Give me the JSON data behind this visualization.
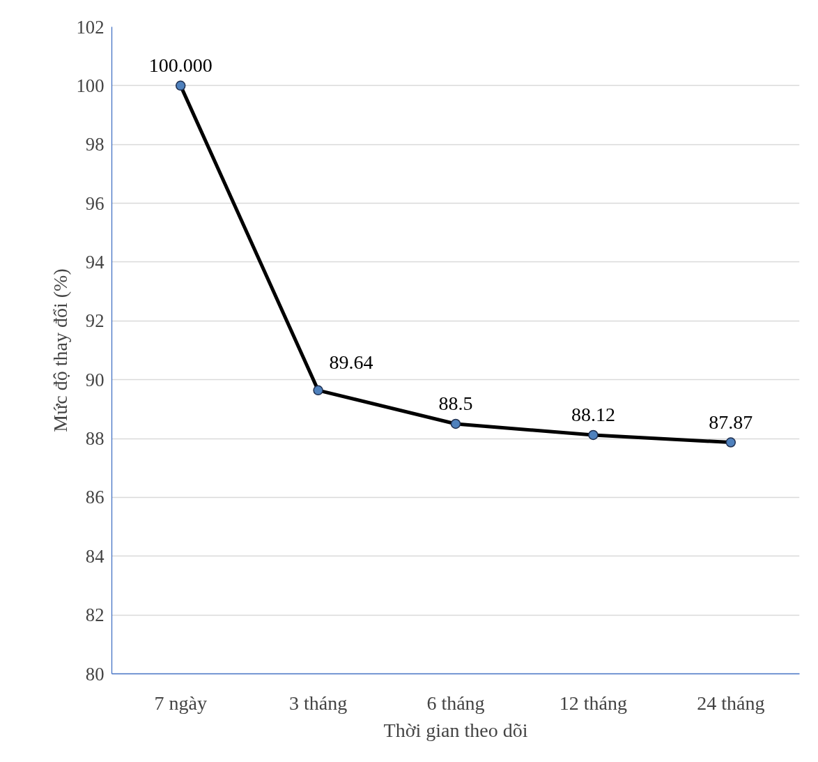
{
  "chart_data": {
    "type": "line",
    "xlabel": "Thời gian theo dõi",
    "ylabel": "Mức độ thay đổi (%)",
    "categories": [
      "7 ngày",
      "3 tháng",
      "6 tháng",
      "12 tháng",
      "24 tháng"
    ],
    "series": [
      {
        "color": "#000000",
        "values": [
          100,
          89.64,
          88.5,
          88.12,
          87.87
        ],
        "value_labels": [
          "100.000",
          "89.64",
          "88.5",
          "88.12",
          "87.87"
        ]
      }
    ],
    "ylim": [
      80,
      102
    ],
    "yticks": [
      80,
      82,
      84,
      86,
      88,
      90,
      92,
      94,
      96,
      98,
      100,
      102
    ],
    "grid": "y",
    "marker": "circle",
    "line_style": "solid"
  }
}
